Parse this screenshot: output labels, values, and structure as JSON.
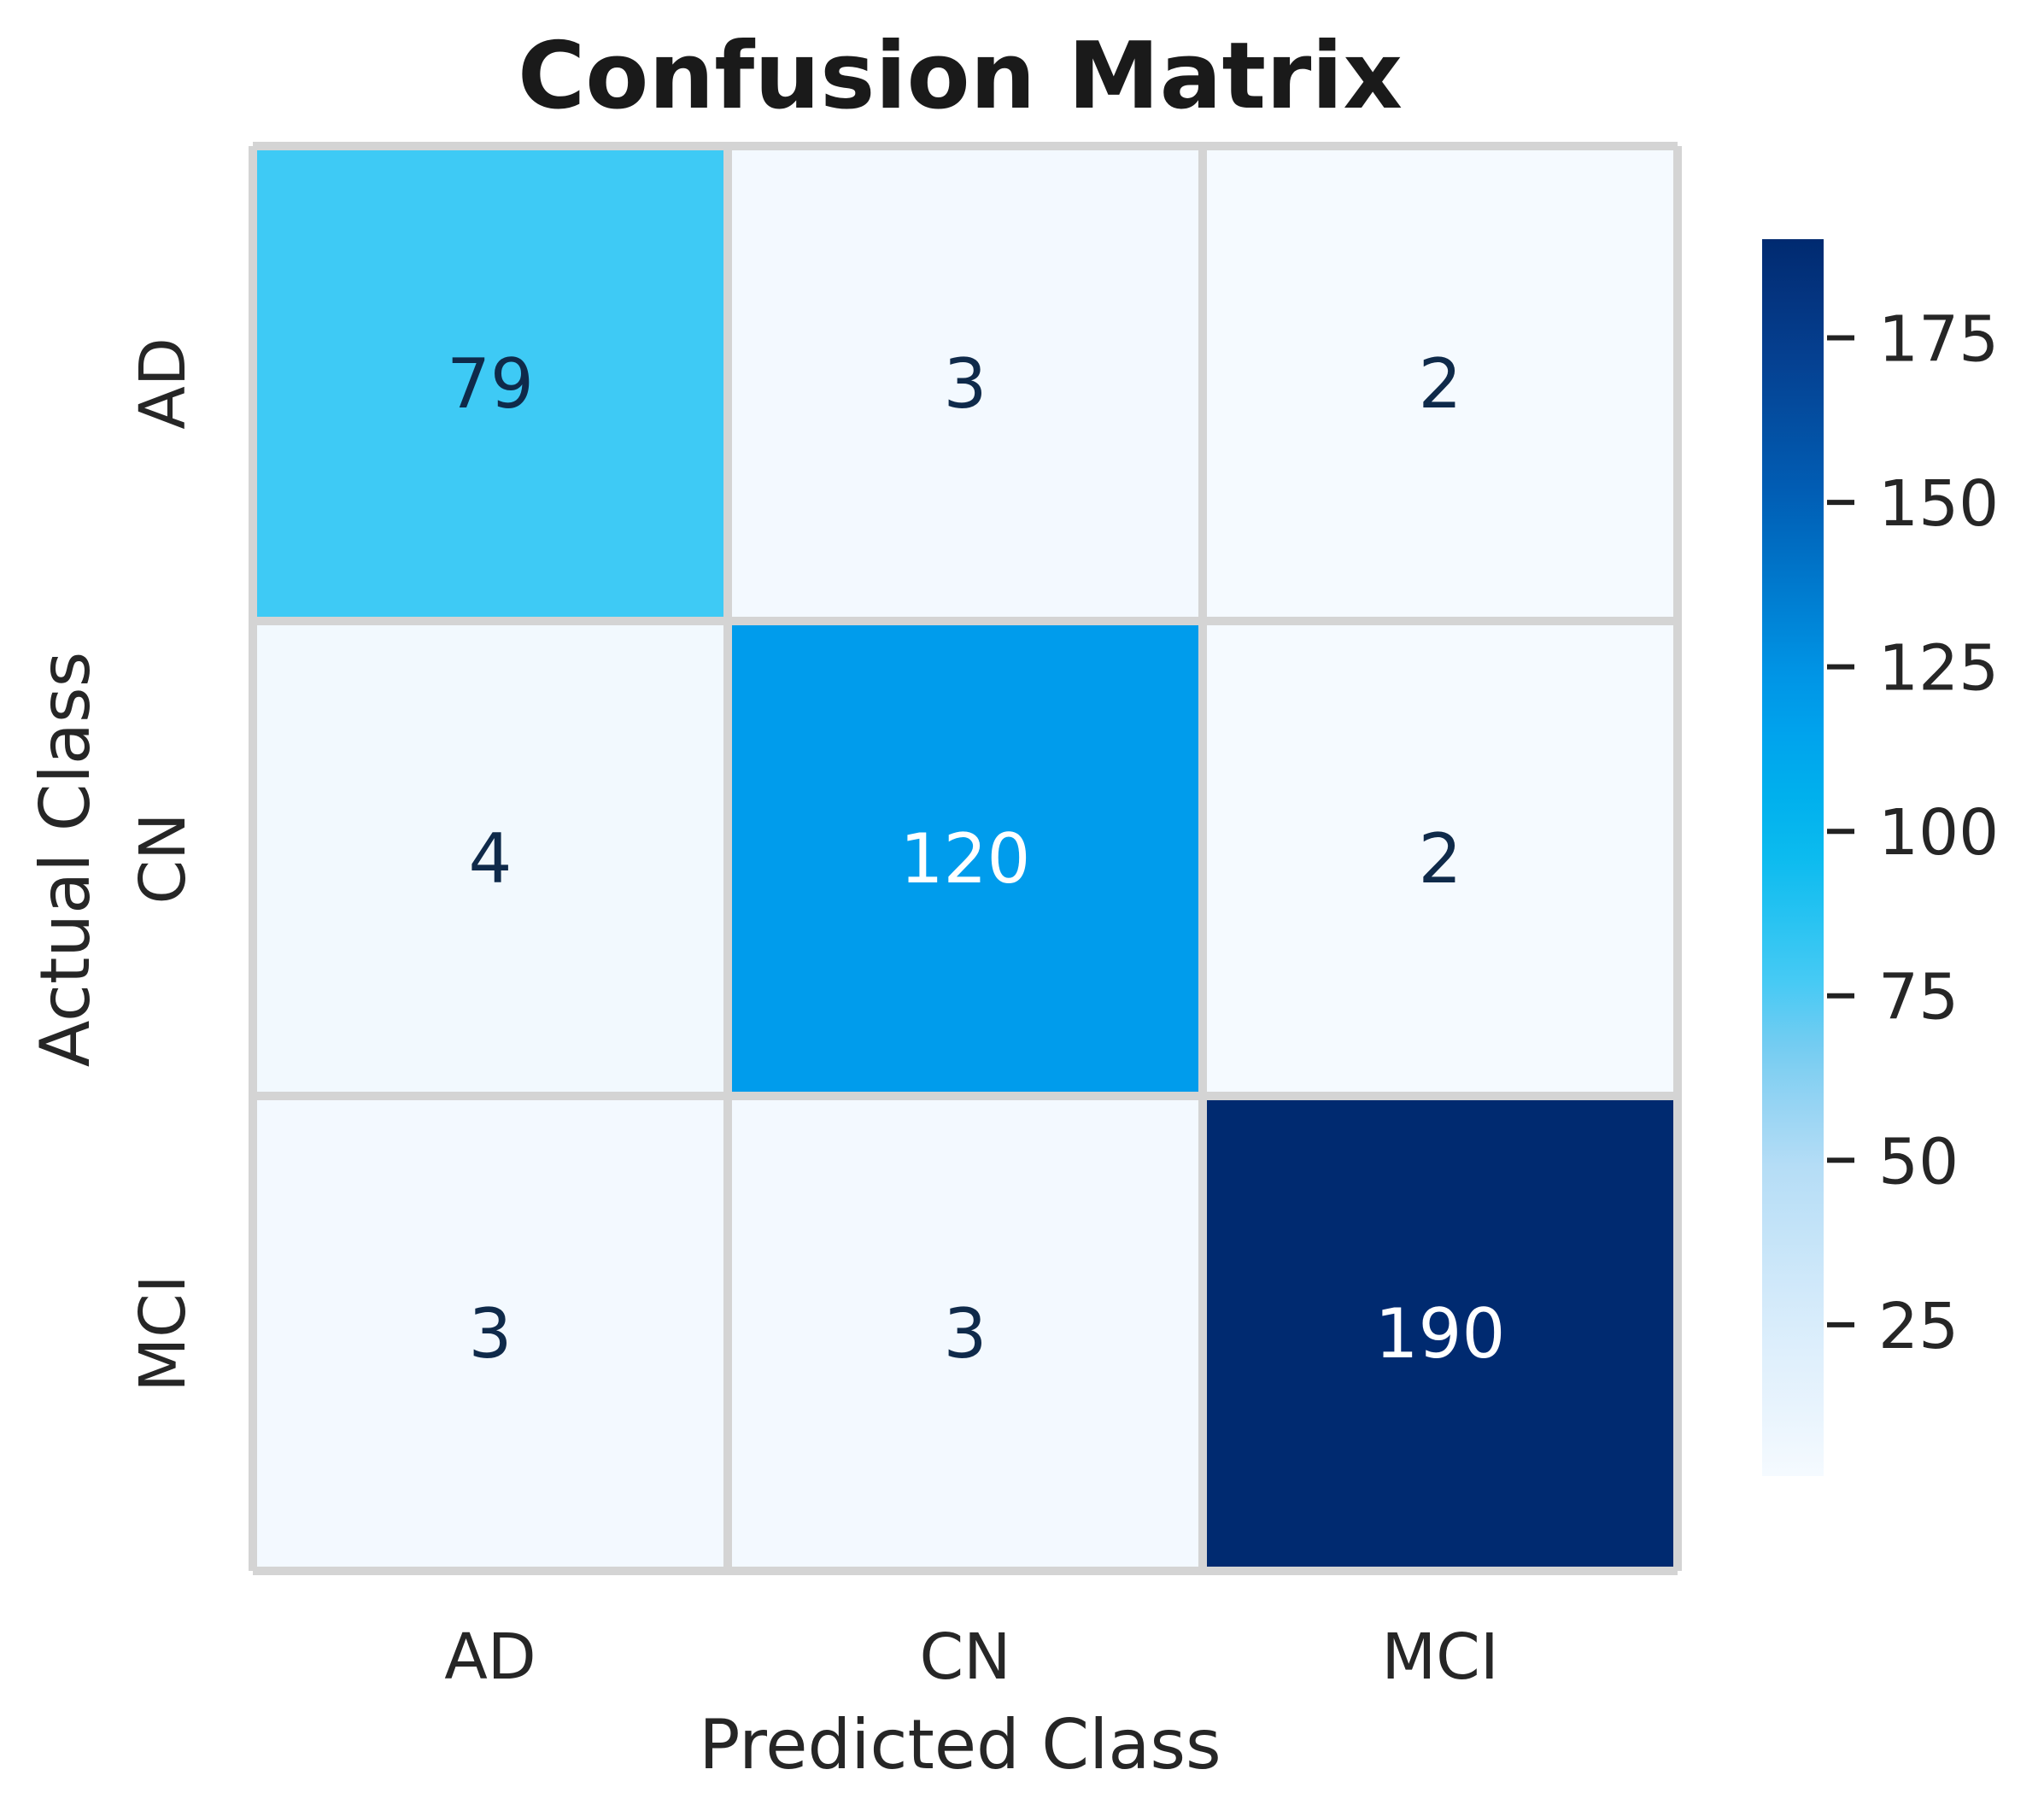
{
  "chart_data": {
    "type": "heatmap",
    "title": "Confusion Matrix",
    "xlabel": "Predicted Class",
    "ylabel": "Actual Class",
    "x_categories": [
      "AD",
      "CN",
      "MCI"
    ],
    "y_categories": [
      "AD",
      "CN",
      "MCI"
    ],
    "values": [
      [
        79,
        3,
        2
      ],
      [
        4,
        120,
        2
      ],
      [
        3,
        3,
        190
      ]
    ],
    "colorbar": {
      "range": [
        2,
        190
      ],
      "ticks": [
        25,
        50,
        75,
        100,
        125,
        150,
        175
      ],
      "tick_labels": [
        "25",
        "50",
        "75",
        "100",
        "125",
        "150",
        "175"
      ]
    },
    "colors": {
      "scale": [
        {
          "v": 0,
          "c": "#f7fbff"
        },
        {
          "v": 25,
          "c": "#d9ecfb"
        },
        {
          "v": 50,
          "c": "#b3dcf6"
        },
        {
          "v": 65,
          "c": "#7fcdf1"
        },
        {
          "v": 79,
          "c": "#3ecaf5"
        },
        {
          "v": 100,
          "c": "#00b8ee"
        },
        {
          "v": 120,
          "c": "#009cec"
        },
        {
          "v": 150,
          "c": "#0060b7"
        },
        {
          "v": 175,
          "c": "#063b8b"
        },
        {
          "v": 190,
          "c": "#002a70"
        }
      ],
      "grid_line": "#d4d4d4",
      "dark_text": "#0f2a4a",
      "light_text": "#ffffff",
      "label_text": "#262626"
    }
  }
}
